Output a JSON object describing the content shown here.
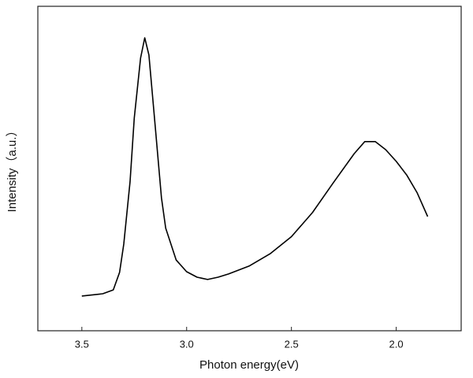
{
  "chart_data": {
    "type": "line",
    "x_label": "Photon energy(eV)",
    "y_label": "Intensity（a.u.）",
    "x": [
      3.5,
      3.4,
      3.35,
      3.32,
      3.3,
      3.27,
      3.25,
      3.22,
      3.2,
      3.18,
      3.15,
      3.12,
      3.1,
      3.05,
      3.0,
      2.95,
      2.9,
      2.85,
      2.8,
      2.7,
      2.6,
      2.5,
      2.4,
      2.3,
      2.2,
      2.15,
      2.1,
      2.05,
      2.0,
      1.95,
      1.9,
      1.85
    ],
    "values": [
      10.7,
      11.4,
      12.6,
      18,
      26.7,
      46,
      65.5,
      84,
      90.3,
      85,
      63,
      41,
      31.6,
      21.8,
      18.2,
      16.5,
      15.8,
      16.5,
      17.5,
      20,
      23.8,
      29,
      36.4,
      45.6,
      54.6,
      58.3,
      58.3,
      55.8,
      52.2,
      48,
      42.5,
      35.2
    ],
    "color": "#000000",
    "xlim": [
      3.71,
      1.69
    ],
    "ylim": [
      0,
      100
    ],
    "xticks": [
      3.5,
      {
        "value": 3.0,
        "label": "3.0"
      },
      2.5,
      {
        "value": 2.0,
        "label": "2.0"
      }
    ]
  }
}
